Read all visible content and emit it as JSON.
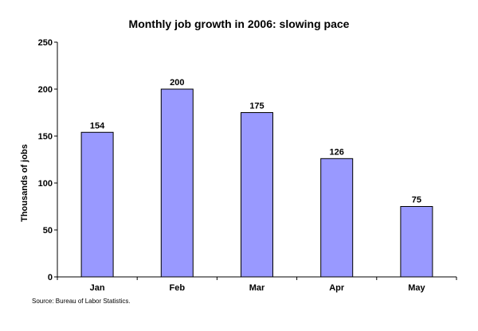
{
  "chart_data": {
    "type": "bar",
    "title": "Monthly job growth in 2006: slowing pace",
    "xlabel": "",
    "ylabel": "Thousands of jobs",
    "categories": [
      "Jan",
      "Feb",
      "Mar",
      "Apr",
      "May"
    ],
    "values": [
      154,
      200,
      175,
      126,
      75
    ],
    "data_labels": [
      "154",
      "200",
      "175",
      "126",
      "75"
    ],
    "ylim": [
      0,
      250
    ],
    "yticks": [
      0,
      50,
      100,
      150,
      200,
      250
    ],
    "grid": false,
    "legend": "none",
    "bar_color": "#9999ff",
    "bar_stroke": "#000000",
    "source": "Source: Bureau of Labor Statistics."
  }
}
